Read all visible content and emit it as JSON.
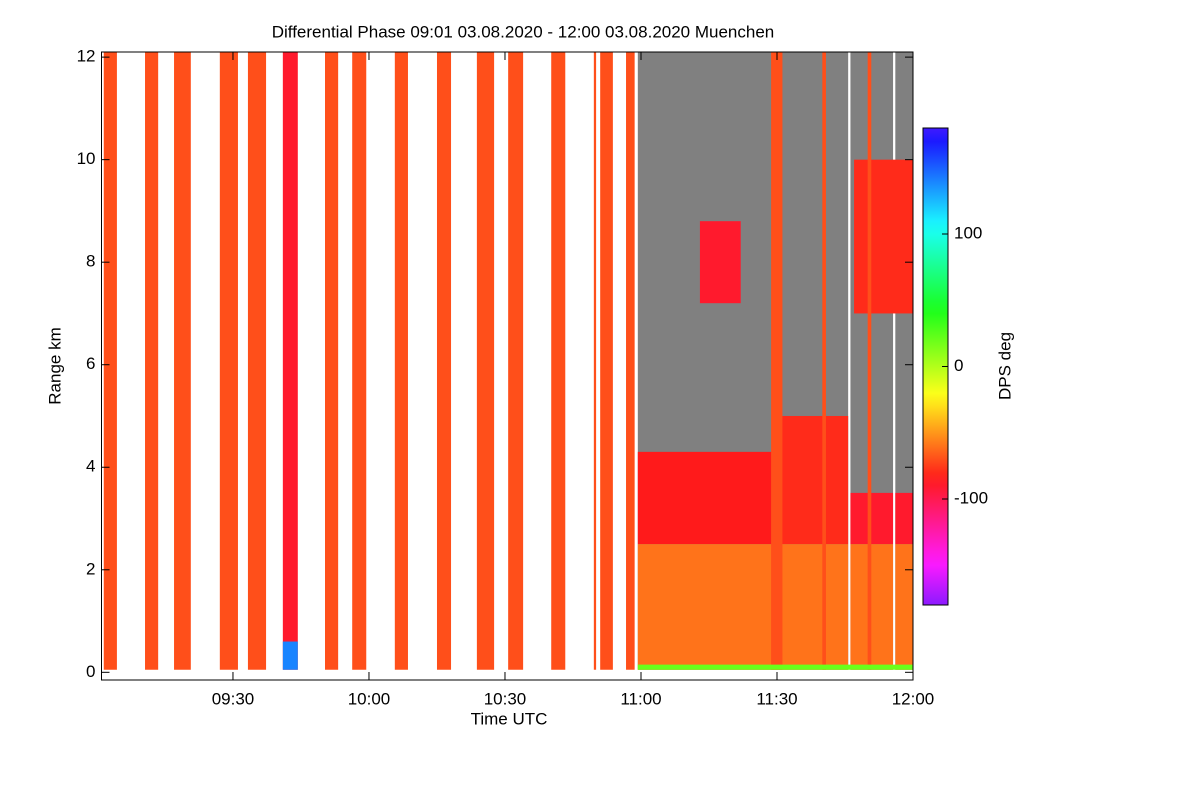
{
  "chart_data": {
    "type": "heatmap",
    "title": "Differential Phase   09:01 03.08.2020 - 12:00 03.08.2020 Muenchen",
    "xlabel": "Time UTC",
    "ylabel": "Range km",
    "colorbar_label": "DPS deg",
    "xlim": [
      541,
      720
    ],
    "ylim": [
      -0.15,
      12.1
    ],
    "clim": [
      -180,
      180
    ],
    "xticks": [
      {
        "value": 570,
        "label": "09:30"
      },
      {
        "value": 600,
        "label": "10:00"
      },
      {
        "value": 630,
        "label": "10:30"
      },
      {
        "value": 660,
        "label": "11:00"
      },
      {
        "value": 690,
        "label": "11:30"
      },
      {
        "value": 720,
        "label": "12:00"
      }
    ],
    "yticks": [
      0,
      2,
      4,
      6,
      8,
      10,
      12
    ],
    "cticks": [
      -100,
      0,
      100
    ],
    "cells": [
      {
        "x0": 541.5,
        "x1": 544.4,
        "y0": 0.05,
        "y1": 12.1,
        "value": -70
      },
      {
        "x0": 550.6,
        "x1": 553.5,
        "y0": 0.05,
        "y1": 12.1,
        "value": -70
      },
      {
        "x0": 557,
        "x1": 560.7,
        "y0": 0.05,
        "y1": 12.1,
        "value": -70
      },
      {
        "x0": 567.1,
        "x1": 571.1,
        "y0": 0.05,
        "y1": 12.1,
        "value": -70
      },
      {
        "x0": 573.3,
        "x1": 577.3,
        "y0": 0.05,
        "y1": 12.1,
        "value": -70
      },
      {
        "x0": 581,
        "x1": 584.3,
        "y0": 0.05,
        "y1": 12.1,
        "value": -90
      },
      {
        "x0": 581,
        "x1": 584.3,
        "y0": 0.05,
        "y1": 0.6,
        "value": 140
      },
      {
        "x0": 590.3,
        "x1": 593.2,
        "y0": 0.05,
        "y1": 12.1,
        "value": -70
      },
      {
        "x0": 596.3,
        "x1": 599.4,
        "y0": 0.05,
        "y1": 12.1,
        "value": -70
      },
      {
        "x0": 605.7,
        "x1": 608.6,
        "y0": 0.05,
        "y1": 12.1,
        "value": -70
      },
      {
        "x0": 615,
        "x1": 618.1,
        "y0": 0.05,
        "y1": 12.1,
        "value": -70
      },
      {
        "x0": 623.8,
        "x1": 627.6,
        "y0": 0.05,
        "y1": 12.1,
        "value": -70
      },
      {
        "x0": 630.7,
        "x1": 634,
        "y0": 0.05,
        "y1": 12.1,
        "value": -70
      },
      {
        "x0": 640.2,
        "x1": 643.3,
        "y0": 0.05,
        "y1": 12.1,
        "value": -70
      },
      {
        "x0": 649.6,
        "x1": 650.1,
        "y0": 0.05,
        "y1": 12.1,
        "value": -70
      },
      {
        "x0": 651,
        "x1": 653.8,
        "y0": 0.05,
        "y1": 12.1,
        "value": -70
      },
      {
        "x0": 656.7,
        "x1": 658.6,
        "y0": 0.05,
        "y1": 12.1,
        "value": -70
      },
      {
        "x0": 659.3,
        "x1": 705.7,
        "y0": 0.05,
        "y1": 12.1,
        "value": null
      },
      {
        "x0": 706.2,
        "x1": 715.6,
        "y0": 0.05,
        "y1": 12.1,
        "value": null
      },
      {
        "x0": 716.1,
        "x1": 720,
        "y0": 0.05,
        "y1": 12.1,
        "value": null
      },
      {
        "x0": 659.3,
        "x1": 690,
        "y0": 2.5,
        "y1": 4.3,
        "value": -85
      },
      {
        "x0": 690,
        "x1": 705.7,
        "y0": 2.5,
        "y1": 5.0,
        "value": -80
      },
      {
        "x0": 706.2,
        "x1": 715.6,
        "y0": 2.5,
        "y1": 3.5,
        "value": -90
      },
      {
        "x0": 716.1,
        "x1": 720,
        "y0": 2.5,
        "y1": 3.5,
        "value": -90
      },
      {
        "x0": 659.3,
        "x1": 705.7,
        "y0": 0.05,
        "y1": 2.5,
        "value": -60
      },
      {
        "x0": 706.2,
        "x1": 715.6,
        "y0": 0.05,
        "y1": 2.5,
        "value": -60
      },
      {
        "x0": 716.1,
        "x1": 720,
        "y0": 0.05,
        "y1": 2.5,
        "value": -60
      },
      {
        "x0": 673,
        "x1": 682,
        "y0": 7.2,
        "y1": 8.8,
        "value": -90
      },
      {
        "x0": 707,
        "x1": 720,
        "y0": 7.0,
        "y1": 10.0,
        "value": -80
      },
      {
        "x0": 688.7,
        "x1": 691.2,
        "y0": 0.05,
        "y1": 12.1,
        "value": -70
      },
      {
        "x0": 700,
        "x1": 700.8,
        "y0": 0.05,
        "y1": 12.1,
        "value": -70
      },
      {
        "x0": 710,
        "x1": 710.8,
        "y0": 0.05,
        "y1": 12.1,
        "value": -70
      },
      {
        "x0": 659.3,
        "x1": 720,
        "y0": 0.05,
        "y1": 0.15,
        "value": 20
      }
    ]
  }
}
